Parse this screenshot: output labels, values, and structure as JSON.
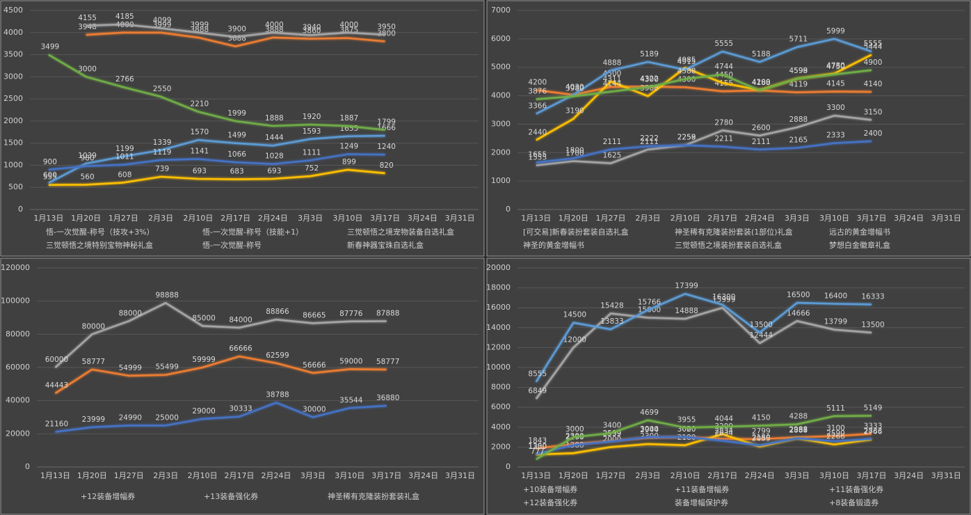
{
  "chart_data": [
    {
      "type": "line",
      "categories": [
        "1月13日",
        "1月20日",
        "1月27日",
        "2月3日",
        "2月10日",
        "2月17日",
        "2月24日",
        "3月3日",
        "3月10日",
        "3月17日",
        "3月24日",
        "3月31日"
      ],
      "ylim": [
        0,
        4500
      ],
      "yticks": [
        0,
        500,
        1000,
        1500,
        2000,
        2500,
        3000,
        3500,
        4000,
        4500
      ],
      "grid": true,
      "series": [
        {
          "name": "悟-一次觉醒-称号（技攻+3%）",
          "color": "#ed7d31",
          "values": [
            null,
            3948,
            4000,
            3999,
            3888,
            3688,
            3888,
            3860,
            3875,
            3800,
            null,
            null
          ]
        },
        {
          "name": "悟-一次觉醒-称号（技能+1）",
          "color": "#a5a5a5",
          "values": [
            null,
            4155,
            4185,
            4099,
            3999,
            3900,
            4000,
            3940,
            4000,
            3950,
            null,
            null
          ]
        },
        {
          "name": "三觉顿悟之境宠物装备自选礼盒",
          "color": "#ffc000",
          "values": [
            555,
            560,
            608,
            739,
            693,
            683,
            693,
            752,
            899,
            820,
            null,
            null
          ]
        },
        {
          "name": "三觉顿悟之境特别宝物神秘礼盒",
          "color": "#5b9bd5",
          "values": [
            600,
            1039,
            1199,
            1339,
            1570,
            1499,
            1444,
            1593,
            1655,
            1666,
            null,
            null
          ]
        },
        {
          "name": "悟-一次觉醒-称号",
          "color": "#4472c4",
          "values": [
            900,
            980,
            1011,
            1119,
            1141,
            1066,
            1028,
            1111,
            1249,
            1240,
            null,
            null
          ]
        },
        {
          "name": "新春神器宝珠自选礼盒",
          "color": "#70ad47",
          "values": [
            3499,
            3000,
            2766,
            2550,
            2210,
            1999,
            1888,
            1920,
            1887,
            1799,
            null,
            null
          ]
        }
      ]
    },
    {
      "type": "line",
      "categories": [
        "1月13日",
        "1月20日",
        "1月27日",
        "2月3日",
        "2月10日",
        "2月17日",
        "2月24日",
        "3月3日",
        "3月10日",
        "3月17日",
        "3月24日",
        "3月31日"
      ],
      "ylim": [
        0,
        7000
      ],
      "yticks": [
        0,
        1000,
        2000,
        3000,
        4000,
        5000,
        6000,
        7000
      ],
      "grid": true,
      "series": [
        {
          "name": "[可交易]新春装扮套装自选礼盒",
          "color": "#ed7d31",
          "values": [
            4200,
            4030,
            4311,
            4322,
            4300,
            4155,
            4188,
            4119,
            4145,
            4140,
            null,
            null
          ]
        },
        {
          "name": "神圣稀有克隆装扮套装(1部位)礼盒",
          "color": "#a5a5a5",
          "values": [
            1555,
            1700,
            1625,
            2111,
            2258,
            2780,
            2600,
            2888,
            3300,
            3150,
            null,
            null
          ]
        },
        {
          "name": "远古的黄金增幅书",
          "color": "#ffc000",
          "values": [
            2440,
            3190,
            4500,
            3988,
            4985,
            4450,
            4200,
            4598,
            4780,
            5444,
            null,
            null
          ]
        },
        {
          "name": "神圣的黄金增幅书",
          "color": "#5b9bd5",
          "values": [
            3366,
            4030,
            4888,
            5189,
            4915,
            5555,
            5188,
            5711,
            5999,
            5555,
            null,
            null
          ]
        },
        {
          "name": "三觉顿悟之境装扮套装自选礼盒",
          "color": "#4472c4",
          "values": [
            1655,
            1800,
            2111,
            2222,
            2259,
            2211,
            2111,
            2165,
            2333,
            2400,
            null,
            null
          ]
        },
        {
          "name": "梦想白金徽章礼盒",
          "color": "#70ad47",
          "values": [
            3876,
            3980,
            4144,
            4300,
            4588,
            4744,
            4188,
            4599,
            4750,
            4900,
            null,
            null
          ]
        }
      ]
    },
    {
      "type": "line",
      "categories": [
        "1月13日",
        "1月20日",
        "1月27日",
        "2月3日",
        "2月10日",
        "2月17日",
        "2月24日",
        "3月3日",
        "3月10日",
        "3月17日",
        "3月24日",
        "3月31日"
      ],
      "ylim": [
        0,
        120000
      ],
      "yticks": [
        0,
        20000,
        40000,
        60000,
        80000,
        100000,
        120000
      ],
      "grid": true,
      "series": [
        {
          "name": "+12装备增幅券",
          "color": "#ed7d31",
          "values": [
            44443,
            58777,
            54999,
            55499,
            59999,
            66666,
            62599,
            56666,
            59000,
            58777,
            null,
            null
          ]
        },
        {
          "name": "+13装备强化券",
          "color": "#a5a5a5",
          "values": [
            60000,
            80000,
            88000,
            98888,
            85000,
            84000,
            88866,
            86665,
            87776,
            87888,
            null,
            null
          ]
        },
        {
          "name": "神圣稀有克隆装扮套装礼盒",
          "color": "#4472c4",
          "values": [
            21160,
            23999,
            24990,
            25000,
            29000,
            30333,
            38788,
            30000,
            35544,
            36880,
            null,
            null
          ]
        }
      ]
    },
    {
      "type": "line",
      "categories": [
        "1月13日",
        "1月20日",
        "1月27日",
        "2月3日",
        "2月10日",
        "2月17日",
        "2月24日",
        "3月3日",
        "3月10日",
        "3月17日",
        "3月24日",
        "3月31日"
      ],
      "ylim": [
        0,
        20000
      ],
      "yticks": [
        0,
        2000,
        4000,
        6000,
        8000,
        10000,
        12000,
        14000,
        16000,
        18000,
        20000
      ],
      "grid": true,
      "series": [
        {
          "name": "+10装备增幅券",
          "color": "#ed7d31",
          "values": [
            1843,
            2300,
            2599,
            2944,
            3000,
            2834,
            2799,
            2988,
            3100,
            3333,
            null,
            null
          ]
        },
        {
          "name": "+11装备增幅券",
          "color": "#a5a5a5",
          "values": [
            6849,
            12000,
            15428,
            15000,
            14888,
            15999,
            12444,
            14666,
            13799,
            13500,
            null,
            null
          ]
        },
        {
          "name": "+11装备强化券",
          "color": "#ffc000",
          "values": [
            1250,
            1388,
            2000,
            2300,
            2180,
            3299,
            2055,
            2887,
            2266,
            2766,
            null,
            null
          ]
        },
        {
          "name": "+12装备强化券",
          "color": "#5b9bd5",
          "values": [
            8555,
            14500,
            13833,
            15766,
            17399,
            16300,
            13500,
            16500,
            16400,
            16333,
            null,
            null
          ]
        },
        {
          "name": "装备增幅保护券",
          "color": "#4472c4",
          "values": [
            1300,
            2200,
            2559,
            3000,
            3020,
            2634,
            2180,
            2888,
            2590,
            2833,
            null,
            null
          ]
        },
        {
          "name": "+8装备锻造券",
          "color": "#70ad47",
          "values": [
            777,
            3000,
            3400,
            4699,
            3955,
            4044,
            4150,
            4288,
            5111,
            5149,
            null,
            null
          ]
        }
      ]
    }
  ]
}
